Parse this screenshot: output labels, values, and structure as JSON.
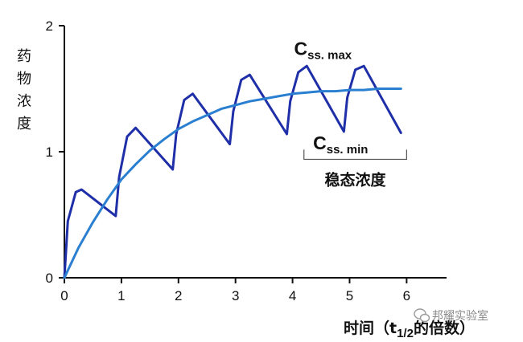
{
  "chart_data": {
    "type": "line",
    "ylabel": "药物浓度",
    "xlabel_prefix": "时间（t",
    "xlabel_sub": "1/2",
    "xlabel_suffix": "的倍数）",
    "xlim": [
      0,
      6.7
    ],
    "ylim": [
      0,
      2
    ],
    "xticks": [
      0,
      1,
      2,
      3,
      4,
      5,
      6
    ],
    "yticks": [
      0,
      1,
      2
    ],
    "series": [
      {
        "color": "#1f2fa8",
        "x": [
          0,
          0.06,
          0.2,
          0.3,
          0.9,
          0.96,
          1.1,
          1.25,
          1.9,
          1.96,
          2.1,
          2.25,
          2.9,
          2.96,
          3.1,
          3.25,
          3.9,
          3.96,
          4.1,
          4.25,
          4.9,
          4.96,
          5.1,
          5.25,
          5.9
        ],
        "y": [
          0,
          0.45,
          0.68,
          0.7,
          0.49,
          0.8,
          1.12,
          1.19,
          0.86,
          1.14,
          1.41,
          1.46,
          1.06,
          1.32,
          1.57,
          1.61,
          1.14,
          1.4,
          1.63,
          1.68,
          1.16,
          1.43,
          1.65,
          1.68,
          1.15
        ]
      },
      {
        "color": "#2a7fd0",
        "x": [
          0,
          0.25,
          0.5,
          0.75,
          1,
          1.25,
          1.5,
          1.75,
          2,
          2.25,
          2.5,
          2.75,
          3,
          3.25,
          3.5,
          3.75,
          4,
          4.25,
          4.5,
          4.75,
          5,
          5.25,
          5.5,
          5.75,
          5.9
        ],
        "y": [
          0,
          0.24,
          0.44,
          0.62,
          0.78,
          0.9,
          1.01,
          1.1,
          1.18,
          1.24,
          1.29,
          1.34,
          1.37,
          1.4,
          1.42,
          1.44,
          1.46,
          1.47,
          1.48,
          1.48,
          1.49,
          1.49,
          1.5,
          1.5,
          1.5
        ]
      }
    ],
    "annotations": {
      "css_max": {
        "main": "C",
        "sub": "ss. max",
        "x": 4.45,
        "y": 1.82
      },
      "css_min": {
        "main": "C",
        "sub": "ss. min",
        "x": 4.6,
        "y": 1.07
      },
      "steady_state": {
        "label": "稳态浓度",
        "x_start": 4.2,
        "x_end": 6.0,
        "y": 0.94
      }
    }
  },
  "watermark": {
    "text": "邦耀实验室"
  }
}
